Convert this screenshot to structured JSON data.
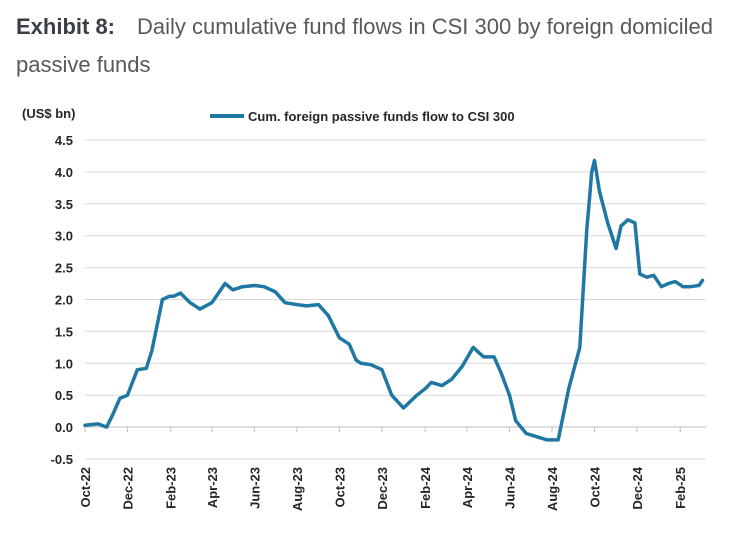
{
  "exhibit": {
    "label": "Exhibit 8:",
    "title": "Daily cumulative fund flows in CSI 300 by foreign domiciled passive funds"
  },
  "chart_data": {
    "type": "line",
    "unit_label": "(US$ bn)",
    "legend_position": "top-center",
    "grid": true,
    "ylim": [
      -0.5,
      4.5
    ],
    "y_ticks": [
      "-0.5",
      "0.0",
      "0.5",
      "1.0",
      "1.5",
      "2.0",
      "2.5",
      "3.0",
      "3.5",
      "4.0",
      "4.5"
    ],
    "x_ticks": [
      "Oct-22",
      "Dec-22",
      "Feb-23",
      "Apr-23",
      "Jun-23",
      "Aug-23",
      "Oct-23",
      "Dec-23",
      "Feb-24",
      "Apr-24",
      "Jun-24",
      "Aug-24",
      "Oct-24",
      "Dec-24",
      "Feb-25"
    ],
    "series": [
      {
        "name": "Cum. foreign passive funds flow to CSI 300",
        "color": "#1f78a4",
        "x": [
          "2022-10-01",
          "2022-10-20",
          "2022-11-01",
          "2022-11-10",
          "2022-11-20",
          "2022-12-01",
          "2022-12-15",
          "2022-12-28",
          "2023-01-05",
          "2023-01-20",
          "2023-01-30",
          "2023-02-05",
          "2023-02-15",
          "2023-03-01",
          "2023-03-15",
          "2023-04-01",
          "2023-04-20",
          "2023-05-01",
          "2023-05-15",
          "2023-06-01",
          "2023-06-15",
          "2023-07-01",
          "2023-07-15",
          "2023-08-01",
          "2023-08-15",
          "2023-09-01",
          "2023-09-15",
          "2023-10-01",
          "2023-10-15",
          "2023-10-25",
          "2023-11-01",
          "2023-11-15",
          "2023-12-01",
          "2023-12-15",
          "2024-01-01",
          "2024-01-20",
          "2024-02-01",
          "2024-02-10",
          "2024-02-25",
          "2024-03-10",
          "2024-03-25",
          "2024-04-10",
          "2024-04-25",
          "2024-05-10",
          "2024-05-20",
          "2024-06-01",
          "2024-06-10",
          "2024-06-25",
          "2024-07-10",
          "2024-07-25",
          "2024-08-10",
          "2024-08-25",
          "2024-09-10",
          "2024-09-20",
          "2024-09-24",
          "2024-09-27",
          "2024-10-01",
          "2024-10-08",
          "2024-10-20",
          "2024-11-01",
          "2024-11-08",
          "2024-11-18",
          "2024-11-28",
          "2024-12-05",
          "2024-12-15",
          "2024-12-25",
          "2025-01-05",
          "2025-01-15",
          "2025-01-25",
          "2025-02-05",
          "2025-02-15",
          "2025-02-28",
          "2025-03-05"
        ],
        "values": [
          0.03,
          0.05,
          0.0,
          0.2,
          0.45,
          0.5,
          0.9,
          0.92,
          1.2,
          2.0,
          2.05,
          2.05,
          2.1,
          1.95,
          1.85,
          1.95,
          2.25,
          2.15,
          2.2,
          2.22,
          2.2,
          2.12,
          1.95,
          1.92,
          1.9,
          1.92,
          1.75,
          1.4,
          1.3,
          1.05,
          1.0,
          0.98,
          0.9,
          0.5,
          0.3,
          0.5,
          0.6,
          0.7,
          0.65,
          0.75,
          0.95,
          1.25,
          1.1,
          1.1,
          0.85,
          0.5,
          0.1,
          -0.1,
          -0.15,
          -0.2,
          -0.2,
          0.6,
          1.25,
          3.1,
          3.6,
          4.0,
          4.18,
          3.7,
          3.2,
          2.8,
          3.15,
          3.25,
          3.2,
          2.4,
          2.35,
          2.38,
          2.2,
          2.25,
          2.28,
          2.2,
          2.2,
          2.22,
          2.3
        ]
      }
    ]
  }
}
